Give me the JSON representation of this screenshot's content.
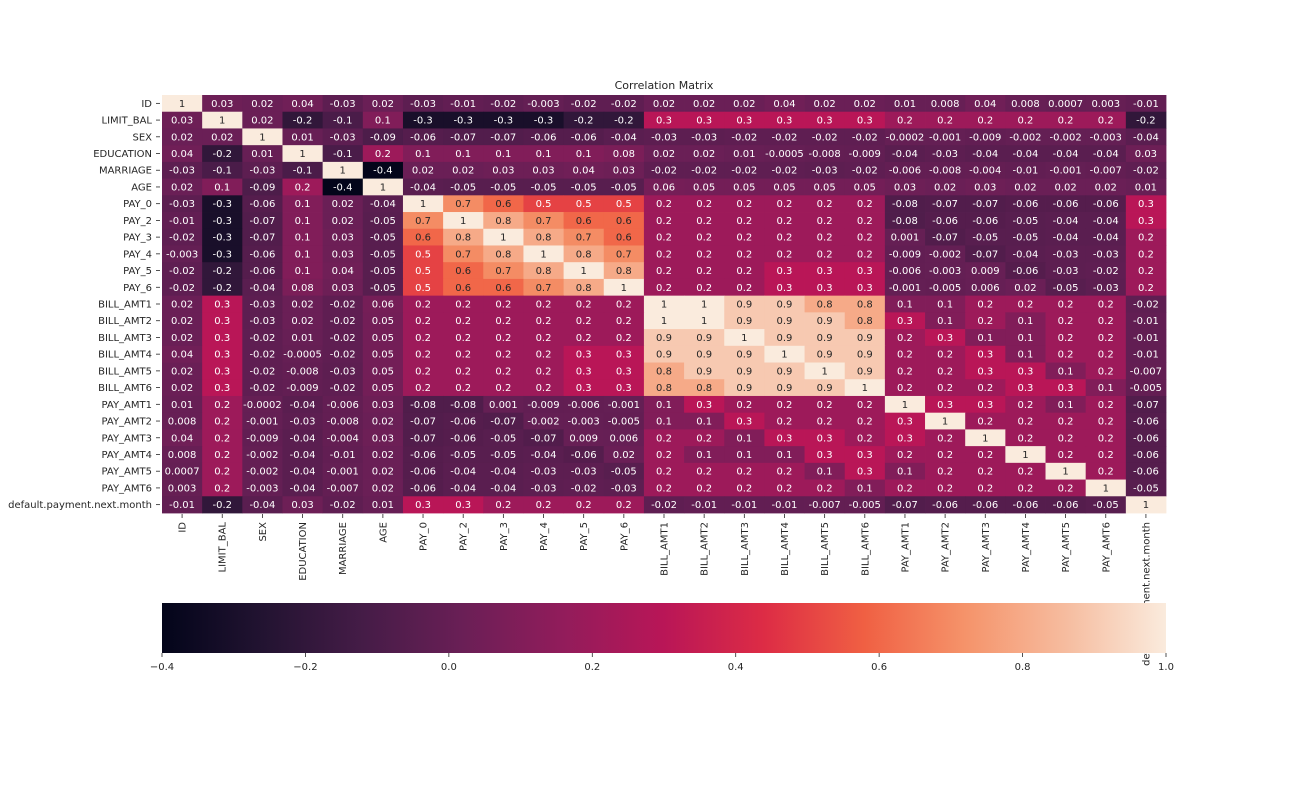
{
  "chart_data": {
    "type": "heatmap",
    "title": "Correlation Matrix",
    "colormap": "rocket",
    "colorbar": {
      "orientation": "horizontal",
      "range": [
        -0.4,
        1.0
      ],
      "ticks": [
        "-0.4",
        "-0.2",
        "0.0",
        "0.2",
        "0.4",
        "0.6",
        "0.8",
        "1.0"
      ]
    },
    "labels": [
      "ID",
      "LIMIT_BAL",
      "SEX",
      "EDUCATION",
      "MARRIAGE",
      "AGE",
      "PAY_0",
      "PAY_2",
      "PAY_3",
      "PAY_4",
      "PAY_5",
      "PAY_6",
      "BILL_AMT1",
      "BILL_AMT2",
      "BILL_AMT3",
      "BILL_AMT4",
      "BILL_AMT5",
      "BILL_AMT6",
      "PAY_AMT1",
      "PAY_AMT2",
      "PAY_AMT3",
      "PAY_AMT4",
      "PAY_AMT5",
      "PAY_AMT6",
      "default.payment.next.month"
    ],
    "annotations": [
      [
        "1",
        "0.03",
        "0.02",
        "0.04",
        "-0.03",
        "0.02",
        "-0.03",
        "-0.01",
        "-0.02",
        "-0.003",
        "-0.02",
        "-0.02",
        "0.02",
        "0.02",
        "0.02",
        "0.04",
        "0.02",
        "0.02",
        "0.01",
        "0.008",
        "0.04",
        "0.008",
        "0.0007",
        "0.003",
        "-0.01"
      ],
      [
        "0.03",
        "1",
        "0.02",
        "-0.2",
        "-0.1",
        "0.1",
        "-0.3",
        "-0.3",
        "-0.3",
        "-0.3",
        "-0.2",
        "-0.2",
        "0.3",
        "0.3",
        "0.3",
        "0.3",
        "0.3",
        "0.3",
        "0.2",
        "0.2",
        "0.2",
        "0.2",
        "0.2",
        "0.2",
        "-0.2"
      ],
      [
        "0.02",
        "0.02",
        "1",
        "0.01",
        "-0.03",
        "-0.09",
        "-0.06",
        "-0.07",
        "-0.07",
        "-0.06",
        "-0.06",
        "-0.04",
        "-0.03",
        "-0.03",
        "-0.02",
        "-0.02",
        "-0.02",
        "-0.02",
        "-0.0002",
        "-0.001",
        "-0.009",
        "-0.002",
        "-0.002",
        "-0.003",
        "-0.04"
      ],
      [
        "0.04",
        "-0.2",
        "0.01",
        "1",
        "-0.1",
        "0.2",
        "0.1",
        "0.1",
        "0.1",
        "0.1",
        "0.1",
        "0.08",
        "0.02",
        "0.02",
        "0.01",
        "-0.0005",
        "-0.008",
        "-0.009",
        "-0.04",
        "-0.03",
        "-0.04",
        "-0.04",
        "-0.04",
        "-0.04",
        "0.03"
      ],
      [
        "-0.03",
        "-0.1",
        "-0.03",
        "-0.1",
        "1",
        "-0.4",
        "0.02",
        "0.02",
        "0.03",
        "0.03",
        "0.04",
        "0.03",
        "-0.02",
        "-0.02",
        "-0.02",
        "-0.02",
        "-0.03",
        "-0.02",
        "-0.006",
        "-0.008",
        "-0.004",
        "-0.01",
        "-0.001",
        "-0.007",
        "-0.02"
      ],
      [
        "0.02",
        "0.1",
        "-0.09",
        "0.2",
        "-0.4",
        "1",
        "-0.04",
        "-0.05",
        "-0.05",
        "-0.05",
        "-0.05",
        "-0.05",
        "0.06",
        "0.05",
        "0.05",
        "0.05",
        "0.05",
        "0.05",
        "0.03",
        "0.02",
        "0.03",
        "0.02",
        "0.02",
        "0.02",
        "0.01"
      ],
      [
        "-0.03",
        "-0.3",
        "-0.06",
        "0.1",
        "0.02",
        "-0.04",
        "1",
        "0.7",
        "0.6",
        "0.5",
        "0.5",
        "0.5",
        "0.2",
        "0.2",
        "0.2",
        "0.2",
        "0.2",
        "0.2",
        "-0.08",
        "-0.07",
        "-0.07",
        "-0.06",
        "-0.06",
        "-0.06",
        "0.3"
      ],
      [
        "-0.01",
        "-0.3",
        "-0.07",
        "0.1",
        "0.02",
        "-0.05",
        "0.7",
        "1",
        "0.8",
        "0.7",
        "0.6",
        "0.6",
        "0.2",
        "0.2",
        "0.2",
        "0.2",
        "0.2",
        "0.2",
        "-0.08",
        "-0.06",
        "-0.06",
        "-0.05",
        "-0.04",
        "-0.04",
        "0.3"
      ],
      [
        "-0.02",
        "-0.3",
        "-0.07",
        "0.1",
        "0.03",
        "-0.05",
        "0.6",
        "0.8",
        "1",
        "0.8",
        "0.7",
        "0.6",
        "0.2",
        "0.2",
        "0.2",
        "0.2",
        "0.2",
        "0.2",
        "0.001",
        "-0.07",
        "-0.05",
        "-0.05",
        "-0.04",
        "-0.04",
        "0.2"
      ],
      [
        "-0.003",
        "-0.3",
        "-0.06",
        "0.1",
        "0.03",
        "-0.05",
        "0.5",
        "0.7",
        "0.8",
        "1",
        "0.8",
        "0.7",
        "0.2",
        "0.2",
        "0.2",
        "0.2",
        "0.2",
        "0.2",
        "-0.009",
        "-0.002",
        "-0.07",
        "-0.04",
        "-0.03",
        "-0.03",
        "0.2"
      ],
      [
        "-0.02",
        "-0.2",
        "-0.06",
        "0.1",
        "0.04",
        "-0.05",
        "0.5",
        "0.6",
        "0.7",
        "0.8",
        "1",
        "0.8",
        "0.2",
        "0.2",
        "0.2",
        "0.3",
        "0.3",
        "0.3",
        "-0.006",
        "-0.003",
        "0.009",
        "-0.06",
        "-0.03",
        "-0.02",
        "0.2"
      ],
      [
        "-0.02",
        "-0.2",
        "-0.04",
        "0.08",
        "0.03",
        "-0.05",
        "0.5",
        "0.6",
        "0.6",
        "0.7",
        "0.8",
        "1",
        "0.2",
        "0.2",
        "0.2",
        "0.3",
        "0.3",
        "0.3",
        "-0.001",
        "-0.005",
        "0.006",
        "0.02",
        "-0.05",
        "-0.03",
        "0.2"
      ],
      [
        "0.02",
        "0.3",
        "-0.03",
        "0.02",
        "-0.02",
        "0.06",
        "0.2",
        "0.2",
        "0.2",
        "0.2",
        "0.2",
        "0.2",
        "1",
        "1",
        "0.9",
        "0.9",
        "0.8",
        "0.8",
        "0.1",
        "0.1",
        "0.2",
        "0.2",
        "0.2",
        "0.2",
        "-0.02"
      ],
      [
        "0.02",
        "0.3",
        "-0.03",
        "0.02",
        "-0.02",
        "0.05",
        "0.2",
        "0.2",
        "0.2",
        "0.2",
        "0.2",
        "0.2",
        "1",
        "1",
        "0.9",
        "0.9",
        "0.9",
        "0.8",
        "0.3",
        "0.1",
        "0.2",
        "0.1",
        "0.2",
        "0.2",
        "-0.01"
      ],
      [
        "0.02",
        "0.3",
        "-0.02",
        "0.01",
        "-0.02",
        "0.05",
        "0.2",
        "0.2",
        "0.2",
        "0.2",
        "0.2",
        "0.2",
        "0.9",
        "0.9",
        "1",
        "0.9",
        "0.9",
        "0.9",
        "0.2",
        "0.3",
        "0.1",
        "0.1",
        "0.2",
        "0.2",
        "-0.01"
      ],
      [
        "0.04",
        "0.3",
        "-0.02",
        "-0.0005",
        "-0.02",
        "0.05",
        "0.2",
        "0.2",
        "0.2",
        "0.2",
        "0.3",
        "0.3",
        "0.9",
        "0.9",
        "0.9",
        "1",
        "0.9",
        "0.9",
        "0.2",
        "0.2",
        "0.3",
        "0.1",
        "0.2",
        "0.2",
        "-0.01"
      ],
      [
        "0.02",
        "0.3",
        "-0.02",
        "-0.008",
        "-0.03",
        "0.05",
        "0.2",
        "0.2",
        "0.2",
        "0.2",
        "0.3",
        "0.3",
        "0.8",
        "0.9",
        "0.9",
        "0.9",
        "1",
        "0.9",
        "0.2",
        "0.2",
        "0.3",
        "0.3",
        "0.1",
        "0.2",
        "-0.007"
      ],
      [
        "0.02",
        "0.3",
        "-0.02",
        "-0.009",
        "-0.02",
        "0.05",
        "0.2",
        "0.2",
        "0.2",
        "0.2",
        "0.3",
        "0.3",
        "0.8",
        "0.8",
        "0.9",
        "0.9",
        "0.9",
        "1",
        "0.2",
        "0.2",
        "0.2",
        "0.3",
        "0.3",
        "0.1",
        "-0.005"
      ],
      [
        "0.01",
        "0.2",
        "-0.0002",
        "-0.04",
        "-0.006",
        "0.03",
        "-0.08",
        "-0.08",
        "0.001",
        "-0.009",
        "-0.006",
        "-0.001",
        "0.1",
        "0.3",
        "0.2",
        "0.2",
        "0.2",
        "0.2",
        "1",
        "0.3",
        "0.3",
        "0.2",
        "0.1",
        "0.2",
        "-0.07"
      ],
      [
        "0.008",
        "0.2",
        "-0.001",
        "-0.03",
        "-0.008",
        "0.02",
        "-0.07",
        "-0.06",
        "-0.07",
        "-0.002",
        "-0.003",
        "-0.005",
        "0.1",
        "0.1",
        "0.3",
        "0.2",
        "0.2",
        "0.2",
        "0.3",
        "1",
        "0.2",
        "0.2",
        "0.2",
        "0.2",
        "-0.06"
      ],
      [
        "0.04",
        "0.2",
        "-0.009",
        "-0.04",
        "-0.004",
        "0.03",
        "-0.07",
        "-0.06",
        "-0.05",
        "-0.07",
        "0.009",
        "0.006",
        "0.2",
        "0.2",
        "0.1",
        "0.3",
        "0.3",
        "0.2",
        "0.3",
        "0.2",
        "1",
        "0.2",
        "0.2",
        "0.2",
        "-0.06"
      ],
      [
        "0.008",
        "0.2",
        "-0.002",
        "-0.04",
        "-0.01",
        "0.02",
        "-0.06",
        "-0.05",
        "-0.05",
        "-0.04",
        "-0.06",
        "0.02",
        "0.2",
        "0.1",
        "0.1",
        "0.1",
        "0.3",
        "0.3",
        "0.2",
        "0.2",
        "0.2",
        "1",
        "0.2",
        "0.2",
        "-0.06"
      ],
      [
        "0.0007",
        "0.2",
        "-0.002",
        "-0.04",
        "-0.001",
        "0.02",
        "-0.06",
        "-0.04",
        "-0.04",
        "-0.03",
        "-0.03",
        "-0.05",
        "0.2",
        "0.2",
        "0.2",
        "0.2",
        "0.1",
        "0.3",
        "0.1",
        "0.2",
        "0.2",
        "0.2",
        "1",
        "0.2",
        "-0.06"
      ],
      [
        "0.003",
        "0.2",
        "-0.003",
        "-0.04",
        "-0.007",
        "0.02",
        "-0.06",
        "-0.04",
        "-0.04",
        "-0.03",
        "-0.02",
        "-0.03",
        "0.2",
        "0.2",
        "0.2",
        "0.2",
        "0.2",
        "0.1",
        "0.2",
        "0.2",
        "0.2",
        "0.2",
        "0.2",
        "1",
        "-0.05"
      ],
      [
        "-0.01",
        "-0.2",
        "-0.04",
        "0.03",
        "-0.02",
        "0.01",
        "0.3",
        "0.3",
        "0.2",
        "0.2",
        "0.2",
        "0.2",
        "-0.02",
        "-0.01",
        "-0.01",
        "-0.01",
        "-0.007",
        "-0.005",
        "-0.07",
        "-0.06",
        "-0.06",
        "-0.06",
        "-0.06",
        "-0.05",
        "1"
      ]
    ]
  }
}
